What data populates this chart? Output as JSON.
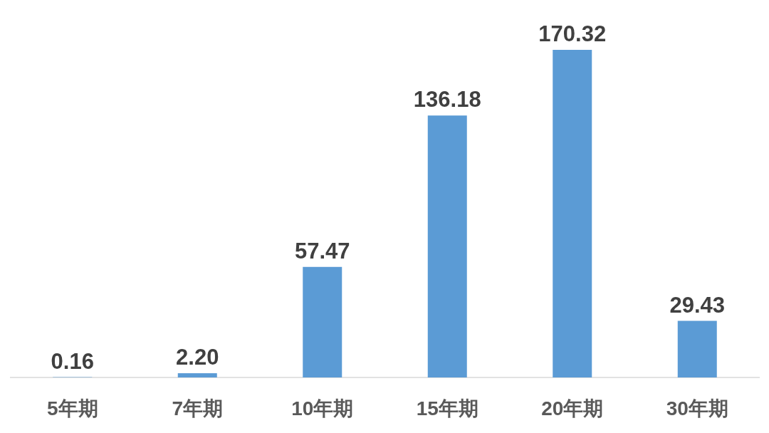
{
  "chart_data": {
    "type": "bar",
    "categories": [
      "5年期",
      "7年期",
      "10年期",
      "15年期",
      "20年期",
      "30年期"
    ],
    "values": [
      0.16,
      2.2,
      57.47,
      136.18,
      170.32,
      29.43
    ],
    "value_labels": [
      "0.16",
      "2.20",
      "57.47",
      "136.18",
      "170.32",
      "29.43"
    ],
    "color": "#5b9bd5"
  }
}
